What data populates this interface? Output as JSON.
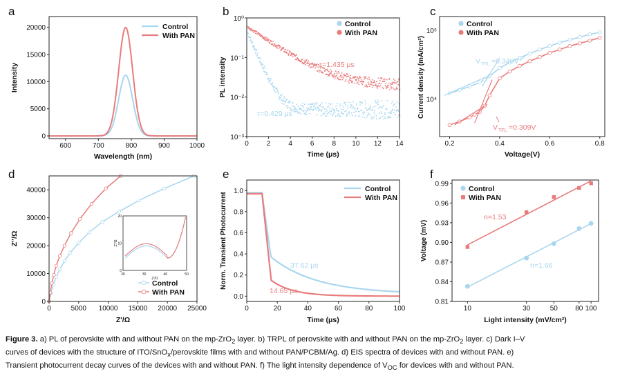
{
  "colors": {
    "control": "#a8d6ee",
    "pan": "#e97b7b",
    "axis": "#222222"
  },
  "legend": {
    "control": "Control",
    "pan": "With PAN"
  },
  "panels": {
    "a": {
      "letter": "a"
    },
    "b": {
      "letter": "b",
      "annotations": {
        "pan": "τ=1.435 μs",
        "control": "τ=0.429 μs"
      }
    },
    "c": {
      "letter": "c",
      "annotations": {
        "control": "V",
        "control_sub": "TFL",
        "control_val": "=0.340V",
        "pan": "V",
        "pan_sub": "TFL",
        "pan_val": "=0.309V"
      }
    },
    "d": {
      "letter": "d",
      "inset_xlabel": "Z'/Ω",
      "inset_ylabel": "Z''/Ω"
    },
    "e": {
      "letter": "e",
      "annotations": {
        "control": "37.62 μs",
        "pan": "14.65 μs"
      }
    },
    "f": {
      "letter": "f",
      "annotations": {
        "pan": "n=1.53",
        "control": "n=1.66"
      }
    }
  },
  "chart_data": [
    {
      "id": "a",
      "type": "line",
      "xlabel": "Wavelength (nm)",
      "ylabel": "Intensity",
      "xlim": [
        550,
        1000
      ],
      "ylim": [
        -500,
        22000
      ],
      "xticks": [
        600,
        700,
        800,
        900,
        1000
      ],
      "yticks": [
        0,
        5000,
        10000,
        15000,
        20000
      ],
      "series": [
        {
          "name": "Control",
          "peak_x": 783,
          "peak_y": 11200,
          "fwhm": 50
        },
        {
          "name": "With PAN",
          "peak_x": 783,
          "peak_y": 20000,
          "fwhm": 50
        }
      ]
    },
    {
      "id": "b",
      "type": "scatter",
      "xlabel": "Time (μs)",
      "ylabel": "PL intensity",
      "xlim": [
        0,
        14
      ],
      "ylim_log": [
        0.001,
        1
      ],
      "xticks": [
        0,
        2,
        4,
        6,
        8,
        10,
        12,
        14
      ],
      "yticks": [
        "10⁰",
        "10⁻¹",
        "10⁻²",
        "10⁻³"
      ],
      "series": [
        {
          "name": "Control",
          "tau_us": 0.429,
          "start": 0.45,
          "floor": 0.005
        },
        {
          "name": "With PAN",
          "tau_us": 1.435,
          "start": 0.6,
          "floor": 0.02
        }
      ]
    },
    {
      "id": "c",
      "type": "line",
      "xlabel": "Voltage(V)",
      "ylabel": "Current density (mA/cm²)",
      "xlim": [
        0.2,
        0.8
      ],
      "xticks": [
        "0.2",
        "0.4",
        "0.6",
        "0.8"
      ],
      "yticks": [
        "10⁵",
        "10⁴"
      ],
      "series": [
        {
          "name": "Control",
          "V_TFL": 0.34,
          "x": [
            0.2,
            0.24,
            0.28,
            0.32,
            0.34,
            0.36,
            0.4,
            0.44,
            0.48,
            0.52,
            0.56,
            0.6,
            0.64,
            0.68,
            0.72,
            0.76,
            0.8
          ],
          "log10_y": [
            4.08,
            4.13,
            4.18,
            4.24,
            4.28,
            4.33,
            4.45,
            4.53,
            4.6,
            4.66,
            4.72,
            4.77,
            4.82,
            4.86,
            4.9,
            4.94,
            4.97
          ]
        },
        {
          "name": "With PAN",
          "V_TFL": 0.309,
          "x": [
            0.2,
            0.24,
            0.28,
            0.3,
            0.32,
            0.34,
            0.36,
            0.4,
            0.44,
            0.48,
            0.52,
            0.56,
            0.6,
            0.64,
            0.68,
            0.72,
            0.76,
            0.8
          ],
          "log10_y": [
            3.62,
            3.67,
            3.73,
            3.77,
            3.81,
            3.9,
            4.05,
            4.3,
            4.4,
            4.48,
            4.55,
            4.61,
            4.67,
            4.72,
            4.77,
            4.81,
            4.85,
            4.89
          ]
        }
      ]
    },
    {
      "id": "d",
      "type": "line",
      "xlabel": "Z'/Ω",
      "ylabel": "Z''/Ω",
      "xlim": [
        0,
        25000
      ],
      "ylim": [
        0,
        45000
      ],
      "xticks": [
        0,
        5000,
        10000,
        15000,
        20000,
        25000
      ],
      "yticks": [
        0,
        10000,
        20000,
        30000,
        40000
      ],
      "series": [
        {
          "name": "Control",
          "x": [
            0,
            300,
            700,
            1200,
            1800,
            2600,
            3600,
            5000,
            6800,
            9000,
            11800,
            15200,
            19500,
            24500
          ],
          "y": [
            0,
            3000,
            6000,
            8800,
            11500,
            14500,
            17500,
            21000,
            24800,
            28500,
            32200,
            36200,
            40500,
            45000
          ]
        },
        {
          "name": "With PAN",
          "x": [
            0,
            200,
            450,
            800,
            1200,
            1800,
            2600,
            3700,
            5200,
            7200,
            9600,
            12100
          ],
          "y": [
            0,
            3200,
            6500,
            9500,
            12800,
            16300,
            20000,
            24500,
            29500,
            35000,
            40500,
            45000
          ]
        }
      ],
      "inset": {
        "xlim": [
          20,
          50
        ],
        "ylim": [
          0,
          20
        ],
        "xticks": [
          20,
          30,
          40,
          50
        ],
        "yticks": [
          0,
          10,
          20
        ]
      }
    },
    {
      "id": "e",
      "type": "line",
      "xlabel": "Time (μs)",
      "ylabel": "Norm. Transient Photocurrent",
      "xlim": [
        0,
        100
      ],
      "ylim": [
        -0.05,
        1.1
      ],
      "xticks": [
        0,
        20,
        40,
        60,
        80,
        100
      ],
      "yticks": [
        "0.0",
        "0.2",
        "0.4",
        "0.6",
        "0.8",
        "1.0"
      ],
      "series": [
        {
          "name": "Control",
          "tau_us": 37.62
        },
        {
          "name": "With PAN",
          "tau_us": 14.65
        }
      ]
    },
    {
      "id": "f",
      "type": "scatter",
      "xlabel": "Light intensity (mV/cm²)",
      "ylabel": "Voltage (mV)",
      "xlim_log": [
        10,
        100
      ],
      "ylim": [
        0.81,
        0.99
      ],
      "xticks": [
        "10",
        "30",
        "50",
        "80",
        "100"
      ],
      "yticks": [
        "0.81",
        "0.84",
        "0.87",
        "0.90",
        "0.93",
        "0.96",
        "0.99"
      ],
      "series": [
        {
          "name": "Control",
          "x": [
            10,
            30,
            50,
            80,
            100
          ],
          "y": [
            0.833,
            0.876,
            0.898,
            0.921,
            0.929
          ],
          "n": 1.66
        },
        {
          "name": "With PAN",
          "x": [
            10,
            30,
            50,
            80,
            100
          ],
          "y": [
            0.893,
            0.946,
            0.969,
            0.983,
            0.99
          ],
          "n": 1.53
        }
      ]
    }
  ],
  "caption": {
    "label": "Figure 3.",
    "line1": "a) PL of perovskite with and without PAN on the mp-ZrO",
    "line1_sub": "2",
    "line1_b": " layer. b) TRPL of perovskite with and without PAN on the mp-ZrO",
    "line1_b_sub": "2",
    "line1_c": " layer. c) Dark I–V",
    "line2": "curves of devices with the structure of ITO/SnO",
    "line2_sub": "x",
    "line2_b": "/perovskite films with and without PAN/PCBM/Ag. d) EIS spectra of devices with and without PAN. e)",
    "line3": "Transient photocurrent decay curves of the devices with and without PAN. f) The light intensity dependence of V",
    "line3_sub": "OC",
    "line3_b": " for devices with and without PAN."
  }
}
